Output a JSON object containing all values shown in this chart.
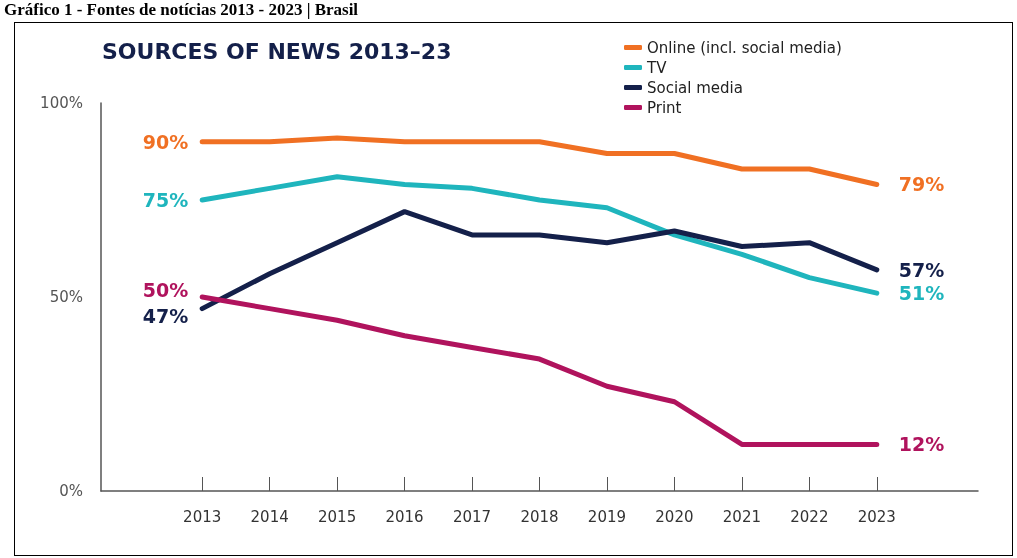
{
  "chart_data": {
    "type": "line",
    "title": "SOURCES OF NEWS 2013–23",
    "annotations": [
      "Gráfico 1 - Fontes de notícias 2013 - 2023 | Brasil"
    ],
    "categories": [
      "2013",
      "2014",
      "2015",
      "2016",
      "2017",
      "2018",
      "2019",
      "2020",
      "2021",
      "2022",
      "2023"
    ],
    "series": [
      {
        "name": "Online (incl. social media)",
        "color": "#f07023",
        "values": [
          90,
          90,
          91,
          90,
          90,
          90,
          87,
          87,
          83,
          83,
          79
        ],
        "value_labels": [
          "90%",
          null,
          null,
          null,
          null,
          null,
          null,
          null,
          null,
          null,
          "79%"
        ]
      },
      {
        "name": "TV",
        "color": "#1fb5bd",
        "values": [
          75,
          78,
          81,
          79,
          78,
          75,
          73,
          66,
          61,
          55,
          51
        ],
        "value_labels": [
          "75%",
          null,
          null,
          null,
          null,
          null,
          null,
          null,
          null,
          null,
          "51%"
        ]
      },
      {
        "name": "Social media",
        "color": "#14204a",
        "values": [
          47,
          56,
          64,
          72,
          66,
          66,
          64,
          67,
          63,
          64,
          57
        ],
        "value_labels": [
          "47%",
          null,
          null,
          null,
          null,
          null,
          null,
          null,
          null,
          null,
          "57%"
        ]
      },
      {
        "name": "Print",
        "color": "#b0135d",
        "values": [
          50,
          47,
          44,
          40,
          37,
          34,
          27,
          23,
          12,
          12,
          12
        ],
        "value_labels": [
          "50%",
          null,
          null,
          null,
          null,
          null,
          null,
          null,
          null,
          null,
          "12%"
        ]
      }
    ],
    "ylim": [
      0,
      100
    ],
    "yticks": [
      {
        "value": 0,
        "label": "0%"
      },
      {
        "value": 50,
        "label": "50%"
      },
      {
        "value": 100,
        "label": "100%"
      }
    ],
    "grid": false,
    "legend": "top right",
    "marker": "none",
    "line_style": "solid"
  }
}
